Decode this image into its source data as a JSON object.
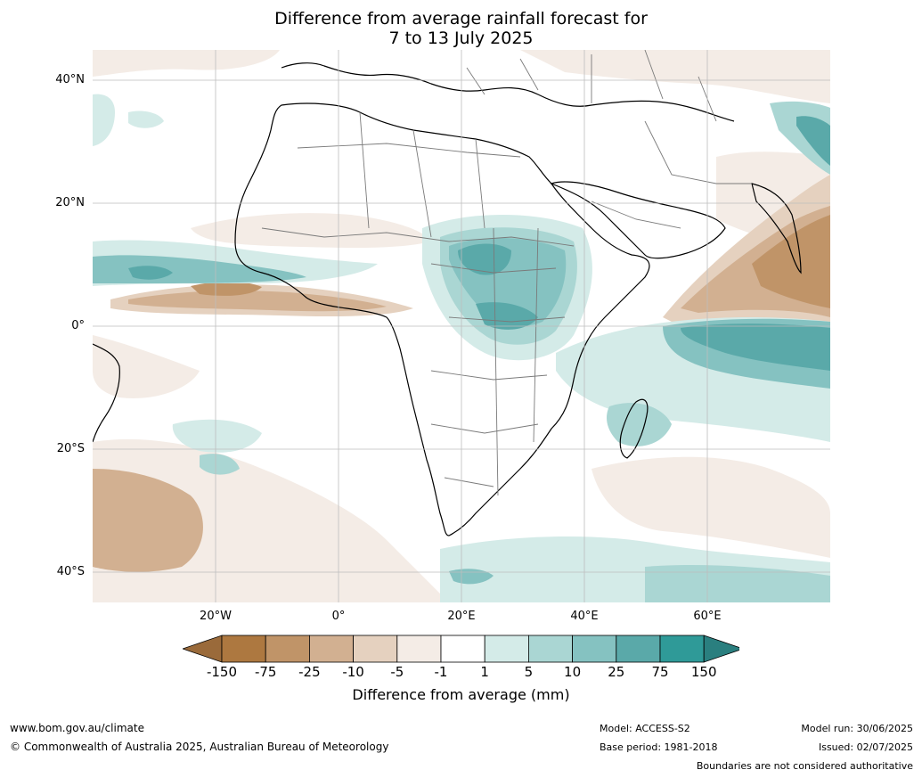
{
  "title": {
    "line1": "Difference from average rainfall forecast for",
    "line2": "7 to 13 July 2025"
  },
  "map": {
    "lat_labels": [
      "40°N",
      "20°N",
      "0°",
      "20°S",
      "40°S"
    ],
    "lon_labels": [
      "20°W",
      "0°",
      "20°E",
      "40°E",
      "60°E"
    ],
    "colors": {
      "ocean": "#ffffff",
      "coast": "#000000",
      "border": "#7a7a7a",
      "grid": "#bdbdbd"
    }
  },
  "colorbar": {
    "title": "Difference from average (mm)",
    "ticks": [
      "-150",
      "-75",
      "-25",
      "-10",
      "-5",
      "-1",
      "1",
      "5",
      "10",
      "25",
      "75",
      "150"
    ],
    "colors": [
      "#9a6a3a",
      "#ad7840",
      "#c09468",
      "#d2b091",
      "#e5d1bf",
      "#f4ece6",
      "#ffffff",
      "#d4ebe8",
      "#aad6d3",
      "#85c2c1",
      "#5aa9a9",
      "#2f9a98",
      "#2a7f7f"
    ]
  },
  "footer": {
    "url": "www.bom.gov.au/climate",
    "copyright": "© Commonwealth of Australia 2025, Australian Bureau of Meteorology",
    "model": "Model: ACCESS-S2",
    "base_period": "Base period: 1981-2018",
    "model_run": "Model run: 30/06/2025",
    "issued": "Issued: 02/07/2025",
    "disclaimer": "Boundaries are not considered authoritative"
  }
}
